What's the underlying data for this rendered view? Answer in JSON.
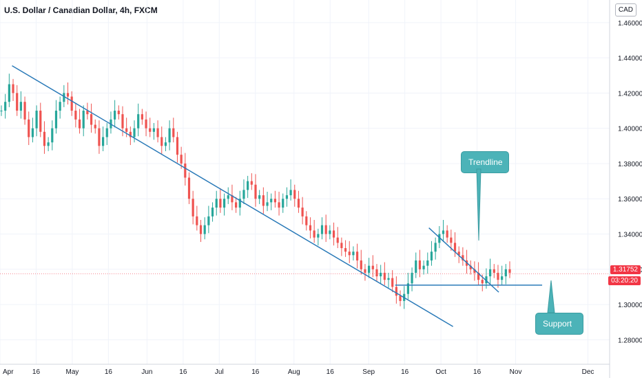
{
  "title": "U.S. Dollar / Canadian Dollar, 4h, FXCM",
  "currency_button": "CAD",
  "price_label": "1.31752",
  "countdown_label": "03:20:20",
  "annotations": {
    "trendline": "Trendline",
    "support": "Support"
  },
  "colors": {
    "up": "#26a69a",
    "down": "#ef5350",
    "trendline": "#2a7ab8",
    "callout": "#4cb3b8",
    "price_tag": "#f23645",
    "grid": "#f0f3fa"
  },
  "chart_data": {
    "type": "candlestick",
    "symbol": "U.S. Dollar / Canadian Dollar",
    "interval": "4h",
    "source": "FXCM",
    "y_ticks": [
      "1.46000",
      "1.44000",
      "1.42000",
      "1.40000",
      "1.38000",
      "1.36000",
      "1.34000",
      "1.32000",
      "1.30000",
      "1.28000"
    ],
    "x_ticks": [
      "Apr",
      "16",
      "May",
      "16",
      "Jun",
      "16",
      "Jul",
      "16",
      "Aug",
      "16",
      "Sep",
      "16",
      "Oct",
      "16",
      "Nov",
      "Dec"
    ],
    "ylim": [
      1.27,
      1.465
    ],
    "last_price": 1.31752,
    "series": [
      {
        "name": "main",
        "values": [
          1.41,
          1.415,
          1.425,
          1.42,
          1.41,
          1.415,
          1.405,
          1.395,
          1.4,
          1.41,
          1.398,
          1.39,
          1.392,
          1.4,
          1.41,
          1.415,
          1.42,
          1.418,
          1.41,
          1.405,
          1.4,
          1.41,
          1.408,
          1.402,
          1.4,
          1.39,
          1.395,
          1.4,
          1.405,
          1.41,
          1.408,
          1.4,
          1.398,
          1.395,
          1.4,
          1.408,
          1.405,
          1.4,
          1.398,
          1.4,
          1.395,
          1.39,
          1.392,
          1.4,
          1.395,
          1.385,
          1.38,
          1.372,
          1.36,
          1.35,
          1.345,
          1.34,
          1.345,
          1.35,
          1.355,
          1.36,
          1.355,
          1.36,
          1.362,
          1.358,
          1.355,
          1.36,
          1.365,
          1.37,
          1.368,
          1.36,
          1.362,
          1.356,
          1.358,
          1.36,
          1.358,
          1.355,
          1.36,
          1.362,
          1.365,
          1.36,
          1.355,
          1.35,
          1.345,
          1.342,
          1.338,
          1.34,
          1.345,
          1.34,
          1.342,
          1.338,
          1.335,
          1.332,
          1.33,
          1.328,
          1.33,
          1.325,
          1.32,
          1.318,
          1.322,
          1.32,
          1.316,
          1.318,
          1.314,
          1.315,
          1.31,
          1.305,
          1.302,
          1.306,
          1.312,
          1.318,
          1.325,
          1.32,
          1.322,
          1.325,
          1.33,
          1.335,
          1.34,
          1.342,
          1.338,
          1.335,
          1.33,
          1.328,
          1.325,
          1.322,
          1.32,
          1.318,
          1.314,
          1.312,
          1.316,
          1.32,
          1.318,
          1.314,
          1.316,
          1.32,
          1.318
        ]
      }
    ],
    "lines": [
      {
        "name": "long-trendline",
        "x": [
          "2022-04-06",
          "2022-10-06"
        ],
        "y": [
          1.4355,
          1.2875
        ]
      },
      {
        "name": "short-trendline",
        "x": [
          "2022-09-26",
          "2022-10-25"
        ],
        "y": [
          1.3435,
          1.307
        ]
      },
      {
        "name": "support-line",
        "x": [
          "2022-09-12",
          "2022-11-12"
        ],
        "y": [
          1.311,
          1.311
        ]
      }
    ]
  }
}
